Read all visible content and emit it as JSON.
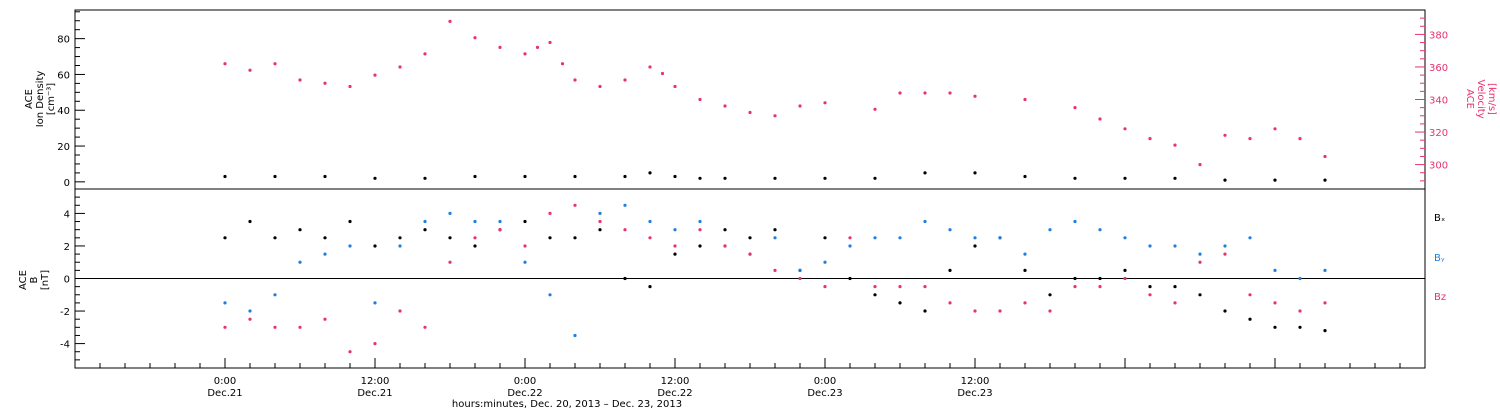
{
  "chart_data": [
    {
      "type": "scatter",
      "panel": "top",
      "ylabel_left": [
        "ACE",
        "Ion Density",
        "[cm⁻³]"
      ],
      "ylabel_right": [
        "ACE",
        "Velocity",
        "[km/s]"
      ],
      "ylim_left": [
        -4,
        96
      ],
      "ylim_right": [
        285,
        395
      ],
      "yticks_left": [
        0,
        20,
        40,
        60,
        80
      ],
      "yticks_right": [
        300,
        320,
        340,
        360,
        380
      ],
      "series": [
        {
          "color": "#e8336d",
          "axis": "right",
          "x": [
            0,
            2,
            4,
            6,
            8,
            10,
            12,
            14,
            16,
            18,
            20,
            22,
            24,
            25,
            26,
            27,
            28,
            30,
            32,
            34,
            35,
            36,
            38,
            40,
            42,
            44,
            46,
            48,
            52,
            54,
            56,
            58,
            60,
            64,
            68,
            70,
            72,
            74,
            76,
            78,
            80,
            82,
            84,
            86,
            88
          ],
          "y": [
            362,
            358,
            362,
            352,
            350,
            348,
            355,
            360,
            368,
            388,
            378,
            372,
            368,
            372,
            375,
            362,
            352,
            348,
            352,
            360,
            356,
            348,
            340,
            336,
            332,
            330,
            336,
            338,
            334,
            344,
            344,
            344,
            342,
            340,
            335,
            328,
            322,
            316,
            312,
            300,
            318,
            316,
            322,
            316,
            305
          ]
        },
        {
          "color": "#000000",
          "axis": "left",
          "x": [
            0,
            4,
            8,
            12,
            16,
            20,
            24,
            28,
            32,
            34,
            36,
            38,
            40,
            44,
            48,
            52,
            56,
            60,
            64,
            68,
            72,
            76,
            80,
            84,
            88
          ],
          "y": [
            3,
            3,
            3,
            2,
            2,
            3,
            3,
            3,
            3,
            5,
            3,
            2,
            2,
            2,
            2,
            2,
            5,
            5,
            3,
            2,
            2,
            2,
            1,
            1,
            1
          ]
        }
      ]
    },
    {
      "type": "scatter",
      "panel": "bottom",
      "ylabel_left": [
        "ACE",
        "B",
        "[nT]"
      ],
      "ylim": [
        -5.5,
        5.5
      ],
      "yticks": [
        -4,
        -2,
        0,
        2,
        4
      ],
      "series": [
        {
          "name": "Bₓ",
          "color": "#000000",
          "x": [
            0,
            2,
            4,
            6,
            8,
            10,
            12,
            14,
            16,
            18,
            20,
            22,
            24,
            26,
            28,
            30,
            32,
            34,
            36,
            38,
            40,
            42,
            44,
            46,
            48,
            50,
            52,
            54,
            56,
            58,
            60,
            62,
            64,
            66,
            68,
            70,
            72,
            74,
            76,
            78,
            80,
            82,
            84,
            86,
            88
          ],
          "y": [
            2.5,
            3.5,
            2.5,
            3.0,
            2.5,
            3.5,
            2.0,
            2.5,
            3.0,
            2.5,
            2.0,
            3.0,
            3.5,
            2.5,
            2.5,
            3.0,
            0.0,
            -0.5,
            1.5,
            2.0,
            3.0,
            2.5,
            3.0,
            0.5,
            2.5,
            0.0,
            -1.0,
            -1.5,
            -2.0,
            0.5,
            2.0,
            2.5,
            0.5,
            -1.0,
            0.0,
            0.0,
            0.5,
            -0.5,
            -0.5,
            -1.0,
            -2.0,
            -2.5,
            -3.0,
            -3.0,
            -3.2
          ]
        },
        {
          "name": "Bᵧ",
          "color": "#1f7fe0",
          "x": [
            0,
            2,
            4,
            6,
            8,
            10,
            12,
            14,
            16,
            18,
            20,
            22,
            24,
            26,
            28,
            30,
            32,
            34,
            36,
            38,
            40,
            42,
            44,
            46,
            48,
            50,
            52,
            54,
            56,
            58,
            60,
            62,
            64,
            66,
            68,
            70,
            72,
            74,
            76,
            78,
            80,
            82,
            84,
            86,
            88
          ],
          "y": [
            -1.5,
            -2.0,
            -1.0,
            1.0,
            1.5,
            2.0,
            -1.5,
            2.0,
            3.5,
            4.0,
            3.5,
            3.5,
            1.0,
            -1.0,
            -3.5,
            4.0,
            4.5,
            3.5,
            3.0,
            3.5,
            2.0,
            1.5,
            2.5,
            0.5,
            1.0,
            2.0,
            2.5,
            2.5,
            3.5,
            3.0,
            2.5,
            2.5,
            1.5,
            3.0,
            3.5,
            3.0,
            2.5,
            2.0,
            2.0,
            1.5,
            2.0,
            2.5,
            0.5,
            0.0,
            0.5
          ]
        },
        {
          "name": "Bz",
          "color": "#e8336d",
          "x": [
            0,
            2,
            4,
            6,
            8,
            10,
            12,
            14,
            16,
            18,
            20,
            22,
            24,
            26,
            28,
            30,
            32,
            34,
            36,
            38,
            40,
            42,
            44,
            46,
            48,
            50,
            52,
            54,
            56,
            58,
            60,
            62,
            64,
            66,
            68,
            70,
            72,
            74,
            76,
            78,
            80,
            82,
            84,
            86,
            88
          ],
          "y": [
            -3.0,
            -2.5,
            -3.0,
            -3.0,
            -2.5,
            -4.5,
            -4.0,
            -2.0,
            -3.0,
            1.0,
            2.5,
            3.0,
            2.0,
            4.0,
            4.5,
            3.5,
            3.0,
            2.5,
            2.0,
            3.0,
            2.0,
            1.5,
            0.5,
            0.0,
            -0.5,
            2.5,
            -0.5,
            -0.5,
            -0.5,
            -1.5,
            -2.0,
            -2.0,
            -1.5,
            -2.0,
            -0.5,
            -0.5,
            0.0,
            -1.0,
            -1.5,
            1.0,
            1.5,
            -1.0,
            -1.5,
            -2.0,
            -1.5
          ]
        }
      ]
    }
  ],
  "x_axis": {
    "xlim_hours": [
      -12,
      96
    ],
    "tick_labels": [
      {
        "hour": 0,
        "time": "0:00",
        "date": "Dec.21"
      },
      {
        "hour": 12,
        "time": "12:00",
        "date": "Dec.21"
      },
      {
        "hour": 24,
        "time": "0:00",
        "date": "Dec.22"
      },
      {
        "hour": 36,
        "time": "12:00",
        "date": "Dec.22"
      },
      {
        "hour": 48,
        "time": "0:00",
        "date": "Dec.23"
      },
      {
        "hour": 60,
        "time": "12:00",
        "date": "Dec.23"
      }
    ],
    "label": "hours:minutes, Dec. 20, 2013 – Dec. 23, 2013"
  }
}
